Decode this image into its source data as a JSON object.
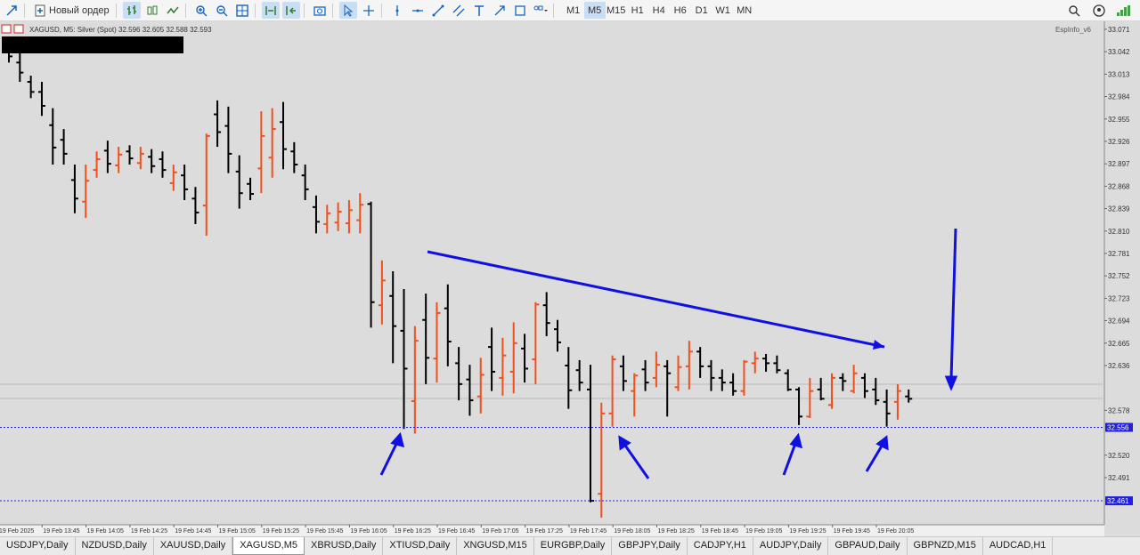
{
  "toolbar": {
    "new_order": "Новый ордер",
    "timeframes": [
      "M1",
      "M5",
      "M15",
      "H1",
      "H4",
      "H6",
      "D1",
      "W1",
      "MN"
    ],
    "active_timeframe": 1
  },
  "chart": {
    "header": "XAGUSD, M5:  Silver (Spot)  32.596 32.605 32.588 32.593",
    "indicator": "EspInfo_v6",
    "ylim": [
      32.43,
      33.079
    ],
    "yticks": [
      33.071,
      33.042,
      33.013,
      32.984,
      32.955,
      32.926,
      32.897,
      32.868,
      32.839,
      {
        "value": 32.81,
        "label": "32.810"
      },
      32.781,
      32.752,
      32.723,
      32.694,
      32.665,
      32.636,
      32.578,
      {
        "value": 32.52,
        "label": "32.520"
      },
      32.491
    ],
    "price_lines": [
      32.556,
      32.461
    ],
    "up_color": "#f0501e",
    "down_color": "#000000",
    "time_labels": [
      "19 Feb 2025",
      "19 Feb 13:45",
      "19 Feb 14:05",
      "19 Feb 14:25",
      "19 Feb 14:45",
      "19 Feb 15:05",
      "19 Feb 15:25",
      "19 Feb 15:45",
      "19 Feb 16:05",
      "19 Feb 16:25",
      "19 Feb 16:45",
      "19 Feb 17:05",
      "19 Feb 17:25",
      "19 Feb 17:45",
      "19 Feb 18:05",
      "19 Feb 18:25",
      "19 Feb 18:45",
      "19 Feb 19:05",
      "19 Feb 19:25",
      "19 Feb 19:45",
      "19 Feb 20:05"
    ],
    "bars": [
      [
        33.049,
        33.057,
        33.028,
        33.036
      ],
      [
        33.028,
        33.04,
        33.003,
        33.015
      ],
      [
        33.003,
        33.011,
        32.982,
        32.99
      ],
      [
        32.99,
        33.003,
        32.959,
        32.972
      ],
      [
        32.947,
        32.969,
        32.896,
        32.918
      ],
      [
        32.928,
        32.942,
        32.896,
        32.91
      ],
      [
        32.876,
        32.896,
        32.833,
        32.852
      ],
      [
        32.848,
        32.896,
        32.827,
        32.875
      ],
      [
        32.889,
        32.913,
        32.879,
        32.903
      ],
      [
        32.914,
        32.927,
        32.885,
        32.897
      ],
      [
        32.895,
        32.919,
        32.885,
        32.909
      ],
      [
        32.913,
        32.921,
        32.896,
        32.904
      ],
      [
        32.898,
        32.919,
        32.89,
        32.91
      ],
      [
        32.906,
        32.916,
        32.885,
        32.894
      ],
      [
        32.903,
        32.913,
        32.879,
        32.889
      ],
      [
        32.872,
        32.896,
        32.862,
        32.886
      ],
      [
        32.882,
        32.896,
        32.85,
        32.864
      ],
      [
        32.852,
        32.867,
        32.819,
        32.834
      ],
      [
        32.843,
        32.936,
        32.804,
        32.933
      ],
      [
        32.961,
        32.979,
        32.919,
        32.938
      ],
      [
        32.946,
        32.971,
        32.885,
        32.91
      ],
      [
        32.887,
        32.908,
        32.839,
        32.859
      ],
      [
        32.871,
        32.879,
        32.85,
        32.858
      ],
      [
        32.891,
        32.965,
        32.859,
        32.933
      ],
      [
        32.905,
        32.969,
        32.879,
        32.942
      ],
      [
        32.951,
        32.977,
        32.89,
        32.916
      ],
      [
        32.913,
        32.925,
        32.885,
        32.896
      ],
      [
        32.882,
        32.896,
        32.85,
        32.864
      ],
      [
        32.841,
        32.856,
        32.807,
        32.822
      ],
      [
        32.819,
        32.844,
        32.807,
        32.833
      ],
      [
        32.821,
        32.847,
        32.81,
        32.835
      ],
      [
        32.82,
        32.85,
        32.807,
        32.837
      ],
      [
        32.824,
        32.859,
        32.807,
        32.844
      ],
      [
        32.845,
        32.848,
        32.685,
        32.718
      ],
      [
        32.714,
        32.772,
        32.689,
        32.746
      ],
      [
        32.726,
        32.758,
        32.639,
        32.687
      ],
      [
        32.681,
        32.735,
        32.554,
        32.632
      ],
      [
        32.59,
        32.687,
        32.548,
        32.668
      ],
      [
        32.695,
        32.729,
        32.612,
        32.646
      ],
      [
        32.645,
        32.718,
        32.614,
        32.704
      ],
      [
        32.71,
        32.741,
        32.635,
        32.667
      ],
      [
        32.639,
        32.66,
        32.591,
        32.612
      ],
      [
        32.618,
        32.637,
        32.571,
        32.591
      ],
      [
        32.596,
        32.646,
        32.574,
        32.624
      ],
      [
        32.66,
        32.685,
        32.603,
        32.628
      ],
      [
        32.62,
        32.672,
        32.597,
        32.649
      ],
      [
        32.628,
        32.692,
        32.6,
        32.665
      ],
      [
        32.658,
        32.677,
        32.614,
        32.632
      ],
      [
        32.644,
        32.718,
        32.612,
        32.715
      ],
      [
        32.714,
        32.731,
        32.674,
        32.691
      ],
      [
        32.683,
        32.695,
        32.654,
        32.666
      ],
      [
        32.636,
        32.66,
        32.58,
        32.604
      ],
      [
        32.63,
        32.643,
        32.603,
        32.614
      ],
      [
        32.605,
        32.637,
        32.459,
        32.461
      ],
      [
        32.47,
        32.588,
        32.439,
        32.574
      ],
      [
        32.574,
        32.649,
        32.557,
        32.644
      ],
      [
        32.635,
        32.649,
        32.603,
        32.616
      ],
      [
        32.603,
        32.626,
        32.57,
        32.623
      ],
      [
        32.631,
        32.643,
        32.603,
        32.614
      ],
      [
        32.62,
        32.654,
        32.608,
        32.637
      ],
      [
        32.635,
        32.643,
        32.57,
        32.626
      ],
      [
        32.608,
        32.649,
        32.603,
        32.634
      ],
      [
        32.635,
        32.668,
        32.605,
        32.654
      ],
      [
        32.654,
        32.66,
        32.62,
        32.635
      ],
      [
        32.635,
        32.643,
        32.603,
        32.62
      ],
      [
        32.62,
        32.631,
        32.603,
        32.614
      ],
      [
        32.614,
        32.626,
        32.597,
        32.603
      ],
      [
        32.603,
        32.643,
        32.597,
        32.641
      ],
      [
        32.639,
        32.654,
        32.626,
        32.645
      ],
      [
        32.645,
        32.651,
        32.628,
        32.639
      ],
      [
        32.639,
        32.649,
        32.626,
        32.63
      ],
      [
        32.626,
        32.631,
        32.603,
        32.605
      ],
      [
        32.605,
        32.608,
        32.559,
        32.57
      ],
      [
        32.57,
        32.62,
        32.568,
        32.603
      ],
      [
        32.605,
        32.62,
        32.591,
        32.593
      ],
      [
        32.585,
        32.626,
        32.58,
        32.62
      ],
      [
        32.62,
        32.626,
        32.603,
        32.616
      ],
      [
        32.603,
        32.637,
        32.6,
        32.626
      ],
      [
        32.62,
        32.626,
        32.594,
        32.603
      ],
      [
        32.605,
        32.62,
        32.585,
        32.591
      ],
      [
        32.589,
        32.605,
        32.557,
        32.574
      ],
      [
        32.589,
        32.612,
        32.566,
        32.603
      ],
      [
        32.596,
        32.605,
        32.588,
        32.593
      ]
    ]
  },
  "tabs": [
    "USDJPY,Daily",
    "NZDUSD,Daily",
    "XAUUSD,Daily",
    "XAGUSD,M5",
    "XBRUSD,Daily",
    "XTIUSD,Daily",
    "XNGUSD,M15",
    "EURGBP,Daily",
    "GBPJPY,Daily",
    "CADJPY,H1",
    "AUDJPY,Daily",
    "GBPAUD,Daily",
    "GBPNZD,M15",
    "AUDCAD,H1"
  ],
  "active_tab": 3
}
